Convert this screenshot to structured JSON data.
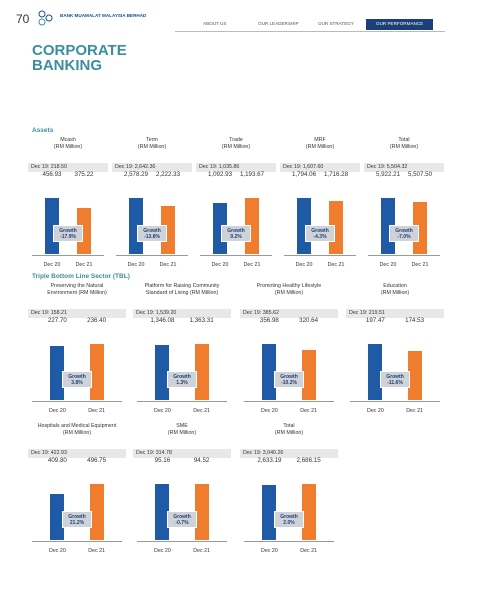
{
  "header": {
    "page_number": "70",
    "bank": "BANK MUAMALAT MALAYSIA BERHAD",
    "nav": [
      "ABOUT US",
      "OUR LEADERSHIP",
      "OUR STRATEGY",
      "OUR PERFORMANCE"
    ]
  },
  "title": [
    "CORPORATE",
    "BANKING"
  ],
  "sections": [
    {
      "title": "Assets",
      "panels": [
        {
          "title": [
            "Mcash",
            "(RM Million)"
          ],
          "baseline": "Dec 19: 218.50",
          "categories": [
            "Dec 20",
            "Dec 21"
          ],
          "values": [
            456.93,
            375.22
          ],
          "value_labels": [
            "456.93",
            "375.22"
          ],
          "growth_label": "Growth",
          "growth": "-17.9%"
        },
        {
          "title": [
            "Term",
            "(RM Million)"
          ],
          "baseline": "Dec 19: 2,642.36",
          "categories": [
            "Dec 20",
            "Dec 21"
          ],
          "values": [
            2578.29,
            2222.33
          ],
          "value_labels": [
            "2,578.29",
            "2,222.33"
          ],
          "growth_label": "Growth",
          "growth": "-13.8%"
        },
        {
          "title": [
            "Trade",
            "(RM Million)"
          ],
          "baseline": "Dec 19: 1,035.86",
          "categories": [
            "Dec 20",
            "Dec 21"
          ],
          "values": [
            1092.93,
            1193.67
          ],
          "value_labels": [
            "1,092.93",
            "1,193.67"
          ],
          "growth_label": "Growth",
          "growth": "9.2%"
        },
        {
          "title": [
            "MRF",
            "(RM Million)"
          ],
          "baseline": "Dec 19: 1,607.60",
          "categories": [
            "Dec 20",
            "Dec 21"
          ],
          "values": [
            1794.06,
            1716.28
          ],
          "value_labels": [
            "1,794.06",
            "1,716.28"
          ],
          "growth_label": "Growth",
          "growth": "-4.3%"
        },
        {
          "title": [
            "Total",
            "(RM Million)"
          ],
          "baseline": "Dec 19: 5,504.32",
          "categories": [
            "Dec 20",
            "Dec 21"
          ],
          "values": [
            5922.21,
            5507.5
          ],
          "value_labels": [
            "5,922.21",
            "5,507.50"
          ],
          "growth_label": "Growth",
          "growth": "-7.0%"
        }
      ]
    },
    {
      "title": "Triple Bottom Line Sector (TBL)",
      "panels": [
        {
          "title": [
            "Preserving the Natural",
            "Environment (RM Million)"
          ],
          "baseline": "Dec 19: 158.21",
          "categories": [
            "Dec 20",
            "Dec 21"
          ],
          "values": [
            227.7,
            236.4
          ],
          "value_labels": [
            "227.70",
            "236.40"
          ],
          "growth_label": "Growth",
          "growth": "3.8%"
        },
        {
          "title": [
            "Platform for Raising Community",
            "Standard of Living (RM Million)"
          ],
          "baseline": "Dec 19: 1,539.20",
          "categories": [
            "Dec 20",
            "Dec 21"
          ],
          "values": [
            1346.08,
            1363.31
          ],
          "value_labels": [
            "1,346.08",
            "1,363.31"
          ],
          "growth_label": "Growth",
          "growth": "1.3%"
        },
        {
          "title": [
            "Promoting Healthy Lifestyle",
            "(RM Million)"
          ],
          "baseline": "Dec 19: 385.62",
          "categories": [
            "Dec 20",
            "Dec 21"
          ],
          "values": [
            356.98,
            320.64
          ],
          "value_labels": [
            "356.98",
            "320.64"
          ],
          "growth_label": "Growth",
          "growth": "-10.2%"
        },
        {
          "title": [
            "Education",
            "(RM Million)"
          ],
          "baseline": "Dec 19: 219.51",
          "categories": [
            "Dec 20",
            "Dec 21"
          ],
          "values": [
            197.47,
            174.53
          ],
          "value_labels": [
            "197.47",
            "174.53"
          ],
          "growth_label": "Growth",
          "growth": "-11.6%"
        },
        {
          "title": [
            "Hospitals and Medical Equipment",
            "(RM Million)"
          ],
          "baseline": "Dec 19: 422.93",
          "categories": [
            "Dec 20",
            "Dec 21"
          ],
          "values": [
            409.8,
            496.75
          ],
          "value_labels": [
            "409.80",
            "496.75"
          ],
          "growth_label": "Growth",
          "growth": "21.2%"
        },
        {
          "title": [
            "SME",
            "(RM Million)"
          ],
          "baseline": "Dec 19: 314.78",
          "categories": [
            "Dec 20",
            "Dec 21"
          ],
          "values": [
            95.16,
            94.52
          ],
          "value_labels": [
            "95.16",
            "94.52"
          ],
          "growth_label": "Growth",
          "growth": "-0.7%"
        },
        {
          "title": [
            "Total",
            "(RM Million)"
          ],
          "baseline": "Dec 19: 3,040.26",
          "categories": [
            "Dec 20",
            "Dec 21"
          ],
          "values": [
            2633.19,
            2686.15
          ],
          "value_labels": [
            "2,633.19",
            "2,686.15"
          ],
          "growth_label": "Growth",
          "growth": "2.0%"
        }
      ]
    }
  ]
}
